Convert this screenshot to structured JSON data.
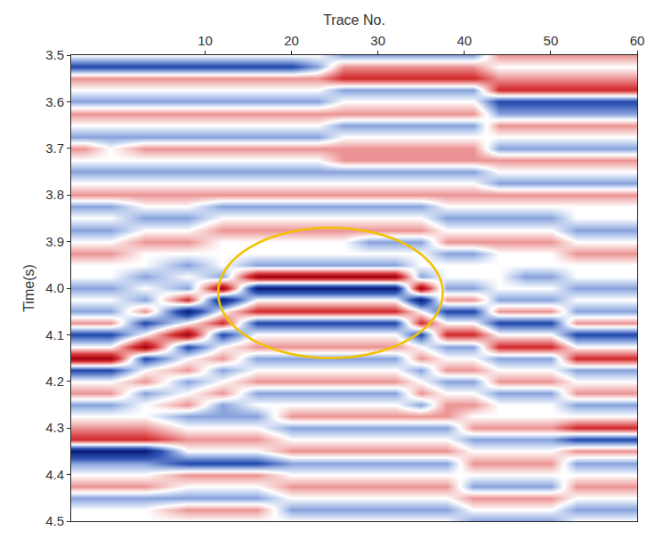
{
  "chart_data": {
    "type": "heatmap",
    "xlabel": "Trace No.",
    "ylabel": "Time(s)",
    "x": [
      -4,
      -1,
      3,
      8,
      12,
      16,
      20,
      23,
      26,
      29,
      32,
      35,
      38,
      41,
      44,
      47,
      50,
      53,
      56,
      59
    ],
    "y": [
      3.5,
      3.525,
      3.55,
      3.575,
      3.6,
      3.625,
      3.65,
      3.675,
      3.7,
      3.725,
      3.75,
      3.775,
      3.8,
      3.825,
      3.85,
      3.875,
      3.9,
      3.925,
      3.95,
      3.975,
      4,
      4.025,
      4.05,
      4.075,
      4.1,
      4.125,
      4.15,
      4.175,
      4.2,
      4.225,
      4.25,
      4.275,
      4.3,
      4.325,
      4.35,
      4.375,
      4.4,
      4.425,
      4.45,
      4.475,
      4.5
    ],
    "z": [
      [
        0,
        -2,
        1,
        0,
        -1,
        1,
        0,
        -1,
        1,
        0,
        -1,
        0,
        1,
        -1,
        0,
        -1,
        0,
        1,
        0,
        0,
        -1,
        0,
        -1,
        1,
        -2,
        0,
        3,
        -2,
        0,
        1,
        -1,
        0,
        1,
        2,
        -3,
        -1,
        0,
        1,
        -1,
        0,
        0
      ],
      [
        0,
        -2,
        1,
        0,
        -1,
        1,
        0,
        -1,
        0,
        0,
        -1,
        0,
        1,
        -1,
        0,
        -1,
        0,
        1,
        0,
        0,
        -1,
        0,
        -1,
        1,
        -2,
        0,
        3,
        -2,
        0,
        1,
        -1,
        0,
        1,
        2,
        -3,
        -1,
        0,
        1,
        -1,
        0,
        0
      ],
      [
        0,
        -2,
        1,
        0,
        -1,
        1,
        0,
        -1,
        1,
        0,
        -1,
        0,
        1,
        0,
        -1,
        0,
        1,
        0,
        0,
        -1,
        0,
        -1,
        1,
        -2,
        0,
        3,
        -2,
        0,
        1,
        -1,
        0,
        0,
        1,
        2,
        -3,
        -1,
        0,
        1,
        -1,
        0,
        0
      ],
      [
        0,
        -2,
        1,
        0,
        -1,
        1,
        0,
        -1,
        1,
        0,
        -1,
        0,
        1,
        0,
        -1,
        0,
        1,
        0,
        -1,
        0,
        -1,
        2,
        -3,
        0,
        3,
        -2,
        0,
        1,
        -1,
        0,
        1,
        -1,
        0,
        1,
        0,
        -2,
        1,
        0,
        -1,
        1,
        0
      ],
      [
        0,
        -2,
        1,
        0,
        -1,
        1,
        0,
        -1,
        1,
        0,
        -1,
        0,
        1,
        -1,
        0,
        1,
        0,
        0,
        0,
        -1,
        3,
        -3,
        0,
        2,
        -2,
        0,
        1,
        -1,
        0,
        1,
        -1,
        -1,
        0,
        1,
        0,
        -2,
        1,
        0,
        -1,
        1,
        0
      ],
      [
        0,
        -2,
        1,
        0,
        -1,
        1,
        0,
        -1,
        1,
        0,
        -1,
        0,
        1,
        -1,
        0,
        1,
        0,
        0,
        -1,
        3,
        -3,
        0,
        2,
        -2,
        0,
        1,
        -1,
        0,
        1,
        -1,
        0,
        -1,
        0,
        1,
        0,
        -2,
        1,
        0,
        -1,
        1,
        0
      ],
      [
        0,
        -2,
        1,
        0,
        -1,
        1,
        0,
        -1,
        1,
        0,
        -1,
        0,
        1,
        -1,
        0,
        1,
        0,
        0,
        -1,
        3,
        -3,
        0,
        2,
        -2,
        0,
        1,
        -1,
        0,
        1,
        -1,
        0,
        1,
        -1,
        0,
        1,
        -1,
        0,
        1,
        0,
        -1,
        0
      ],
      [
        0,
        -1,
        1,
        0,
        -1,
        1,
        0,
        -1,
        1,
        0,
        -1,
        0,
        1,
        -1,
        0,
        1,
        0,
        0,
        -1,
        3,
        -3,
        0,
        2,
        -2,
        0,
        1,
        -1,
        0,
        1,
        -1,
        0,
        1,
        -1,
        0,
        1,
        -1,
        0,
        1,
        0,
        -1,
        0
      ],
      [
        -1,
        1,
        2,
        -1,
        0,
        1,
        -1,
        0,
        1,
        1,
        -1,
        0,
        1,
        -1,
        0,
        1,
        0,
        0,
        -1,
        3,
        -3,
        0,
        2,
        -2,
        0,
        1,
        -1,
        0,
        1,
        -1,
        0,
        1,
        -1,
        0,
        1,
        -1,
        0,
        1,
        0,
        -1,
        0
      ],
      [
        -1,
        1,
        2,
        -1,
        0,
        1,
        -1,
        0,
        1,
        1,
        -1,
        0,
        1,
        -1,
        0,
        1,
        -1,
        0,
        -1,
        3,
        -3,
        0,
        2,
        -2,
        0,
        1,
        -1,
        0,
        1,
        -1,
        0,
        1,
        -1,
        0,
        1,
        -1,
        0,
        1,
        0,
        -1,
        0
      ],
      [
        -1,
        1,
        2,
        -1,
        0,
        1,
        -1,
        0,
        1,
        1,
        -1,
        0,
        1,
        -1,
        0,
        1,
        -1,
        0,
        -1,
        3,
        -3,
        0,
        2,
        -2,
        0,
        1,
        -1,
        0,
        1,
        -1,
        0,
        1,
        -1,
        0,
        1,
        -1,
        0,
        1,
        0,
        -1,
        0
      ],
      [
        -1,
        1,
        2,
        -1,
        0,
        1,
        -1,
        0,
        1,
        1,
        -1,
        0,
        1,
        -1,
        0,
        1,
        -1,
        0,
        0,
        -1,
        3,
        -3,
        0,
        2,
        -2,
        0,
        1,
        -1,
        0,
        1,
        -1,
        1,
        -1,
        0,
        1,
        -1,
        0,
        1,
        0,
        -1,
        0
      ],
      [
        -1,
        1,
        2,
        -1,
        0,
        1,
        -1,
        0,
        1,
        1,
        -1,
        0,
        1,
        0,
        -1,
        0,
        1,
        -1,
        0,
        0,
        -1,
        1,
        -2,
        0,
        2,
        -1,
        0,
        1,
        -1,
        0,
        1,
        1,
        -1,
        0,
        1,
        -1,
        0,
        1,
        0,
        -1,
        0
      ],
      [
        -1,
        1,
        2,
        -1,
        0,
        1,
        -1,
        0,
        1,
        1,
        -1,
        0,
        1,
        0,
        -1,
        0,
        1,
        -1,
        0,
        0,
        -1,
        1,
        -2,
        0,
        2,
        -1,
        0,
        1,
        -1,
        0,
        1,
        0,
        1,
        -1,
        0,
        1,
        0,
        -1,
        1,
        0,
        -1
      ],
      [
        1,
        0,
        1,
        2,
        -2,
        -1,
        1,
        0,
        -1,
        1,
        0,
        -1,
        1,
        0,
        -1,
        0,
        1,
        0,
        0,
        0,
        0,
        -1,
        1,
        -2,
        0,
        2,
        -1,
        0,
        1,
        -1,
        0,
        0,
        1,
        -1,
        0,
        1,
        0,
        -1,
        1,
        0,
        -1
      ],
      [
        1,
        0,
        1,
        2,
        -2,
        -1,
        1,
        0,
        -1,
        1,
        0,
        -1,
        1,
        0,
        -1,
        0,
        1,
        0,
        0,
        -1,
        0,
        -1,
        1,
        -2,
        0,
        2,
        -1,
        0,
        1,
        -1,
        0,
        0,
        1,
        -1,
        0,
        1,
        0,
        -1,
        1,
        0,
        -1
      ],
      [
        1,
        0,
        1,
        2,
        -2,
        -1,
        1,
        0,
        -1,
        1,
        0,
        -1,
        1,
        0,
        -1,
        0,
        1,
        0,
        0,
        -1,
        0,
        -1,
        1,
        -2,
        0,
        2,
        -1,
        0,
        1,
        -1,
        0,
        0,
        1,
        -1,
        0,
        1,
        0,
        -1,
        1,
        0,
        -1
      ],
      [
        1,
        0,
        1,
        2,
        -2,
        -1,
        1,
        0,
        -1,
        1,
        0,
        -1,
        1,
        0,
        0,
        -1,
        0,
        1,
        0,
        0,
        -1,
        0,
        -1,
        1,
        -2,
        0,
        2,
        -1,
        0,
        1,
        -1,
        0,
        2,
        -2,
        1,
        -1,
        0,
        1,
        0,
        -1,
        0
      ],
      [
        1,
        0,
        1,
        2,
        -2,
        -1,
        1,
        0,
        -1,
        1,
        0,
        -1,
        1,
        0,
        0,
        -1,
        0,
        1,
        0,
        0,
        -1,
        0,
        -1,
        1,
        -2,
        0,
        2,
        -1,
        0,
        1,
        -1,
        0,
        2,
        -2,
        1,
        -1,
        0,
        1,
        0,
        -1,
        0
      ],
      [
        1,
        0,
        1,
        2,
        -2,
        -1,
        1,
        0,
        -1,
        1,
        0,
        -1,
        1,
        0,
        0,
        -1,
        0,
        1,
        0,
        0,
        -1,
        0,
        -1,
        1,
        -2,
        0,
        2,
        -1,
        0,
        1,
        -1,
        0,
        2,
        -2,
        1,
        -1,
        0,
        1,
        0,
        -1,
        0
      ]
    ],
    "zlim": [
      -3,
      3
    ],
    "xlim": [
      -5.5,
      60
    ],
    "xticks": [
      10,
      20,
      30,
      40,
      50,
      60
    ],
    "ylim": [
      4.5,
      3.5
    ],
    "yticks": [
      3.5,
      3.6,
      3.7,
      3.8,
      3.9,
      {
        "value": 4,
        "label": "4.0"
      },
      4.1,
      4.2,
      4.3,
      4.4,
      4.5
    ],
    "ellipse": {
      "x": [
        11.5,
        37.5
      ],
      "y": [
        3.87,
        4.15
      ],
      "color": "#f2c200"
    }
  }
}
